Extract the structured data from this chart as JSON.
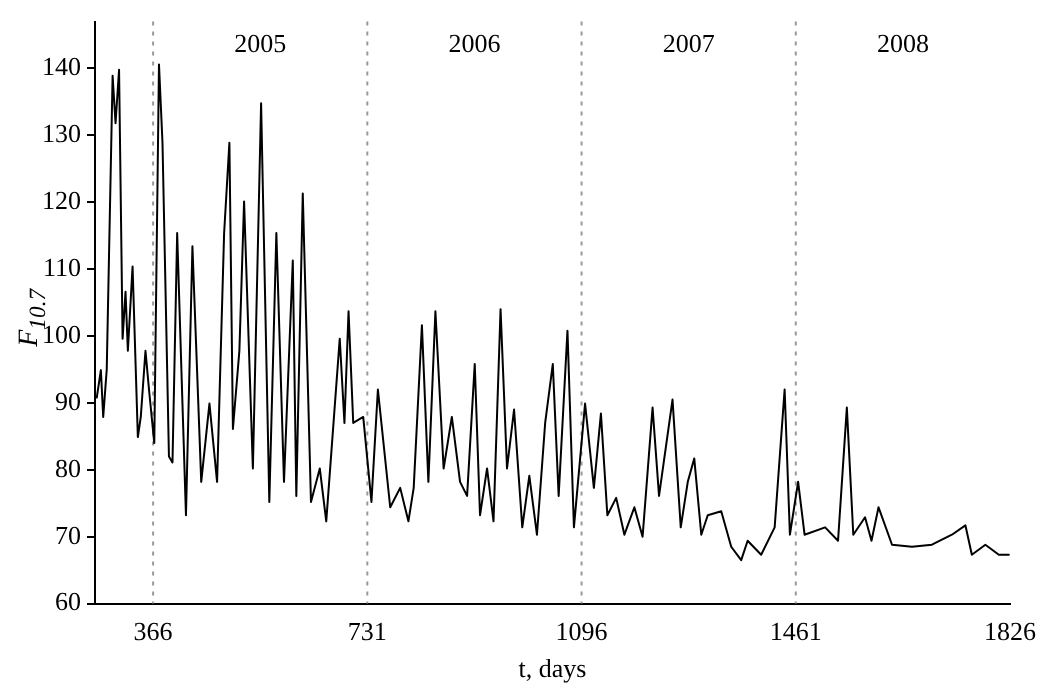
{
  "chart_data": {
    "type": "line",
    "xlabel": "t, days",
    "ylabel": "F$_{10.7}$",
    "color": "#000000",
    "marker": "none",
    "line_style": "solid",
    "grid": false,
    "legend": false,
    "x": [
      270,
      277,
      281,
      287,
      297,
      302,
      308,
      314,
      319,
      323,
      331,
      340,
      345,
      353,
      359,
      368,
      376,
      382,
      393,
      399,
      407,
      416,
      422,
      433,
      448,
      462,
      475,
      487,
      496,
      502,
      513,
      521,
      536,
      550,
      564,
      576,
      589,
      604,
      610,
      621,
      635,
      650,
      661,
      684,
      692,
      699,
      707,
      724,
      738,
      749,
      770,
      787,
      801,
      810,
      824,
      835,
      847,
      861,
      875,
      889,
      901,
      914,
      923,
      935,
      946,
      958,
      969,
      981,
      995,
      1007,
      1020,
      1034,
      1047,
      1057,
      1072,
      1083,
      1102,
      1117,
      1129,
      1140,
      1155,
      1169,
      1186,
      1200,
      1217,
      1228,
      1251,
      1265,
      1277,
      1288,
      1300,
      1311,
      1334,
      1351,
      1368,
      1379,
      1402,
      1425,
      1442,
      1451,
      1465,
      1476,
      1511,
      1533,
      1548,
      1559,
      1579,
      1590,
      1602,
      1625,
      1659,
      1693,
      1727,
      1750,
      1761,
      1784,
      1807,
      1824
    ],
    "values": [
      90.8,
      94.9,
      87.9,
      95,
      138.9,
      131.8,
      139.8,
      99.6,
      106.6,
      97.8,
      110.4,
      84.9,
      87.9,
      97.8,
      92,
      84,
      140.6,
      128.9,
      82,
      81.1,
      115.4,
      89.9,
      73.2,
      113.4,
      78.2,
      89.9,
      78.2,
      115.4,
      128.9,
      86.1,
      97.8,
      120.1,
      80.2,
      134.8,
      75.2,
      115.4,
      78.2,
      111.3,
      76.1,
      121.3,
      75.2,
      80.2,
      72.3,
      99.6,
      87,
      103.7,
      87,
      87.9,
      75.2,
      92,
      74.4,
      77.3,
      72.3,
      77.3,
      101.6,
      78.2,
      103.7,
      80.2,
      87.9,
      78.2,
      76.1,
      95.8,
      73.2,
      80.2,
      72.3,
      104,
      80.2,
      89,
      71.4,
      79.1,
      70.3,
      87,
      95.8,
      76.1,
      100.8,
      71.4,
      89.9,
      77.3,
      88.4,
      73.2,
      75.8,
      70.3,
      74.4,
      70,
      89.3,
      76.1,
      90.5,
      71.4,
      78.2,
      81.7,
      70.3,
      73.2,
      73.8,
      68.5,
      66.5,
      69.4,
      67.3,
      71.4,
      92,
      70.3,
      78.2,
      70.3,
      71.4,
      69.4,
      89.3,
      70.3,
      72.9,
      69.4,
      74.4,
      68.8,
      68.5,
      68.8,
      70.3,
      71.7,
      67.3,
      68.8,
      67.3,
      67.3
    ],
    "xlim": [
      267,
      1826
    ],
    "xticks": [
      366,
      731,
      1096,
      1461,
      1826
    ],
    "ylim": [
      60,
      147
    ],
    "yticks": [
      60,
      70,
      80,
      90,
      100,
      110,
      120,
      130,
      140
    ],
    "ref_lines": [
      {
        "axis": "x",
        "value": 366,
        "line_style": "dotted",
        "color": "#999999"
      },
      {
        "axis": "x",
        "value": 731,
        "line_style": "dotted",
        "color": "#999999"
      },
      {
        "axis": "x",
        "value": 1096,
        "line_style": "dotted",
        "color": "#999999"
      },
      {
        "axis": "x",
        "value": 1461,
        "line_style": "dotted",
        "color": "#999999"
      }
    ],
    "annotations": [
      "2005",
      "2006",
      "2007",
      "2008"
    ]
  }
}
